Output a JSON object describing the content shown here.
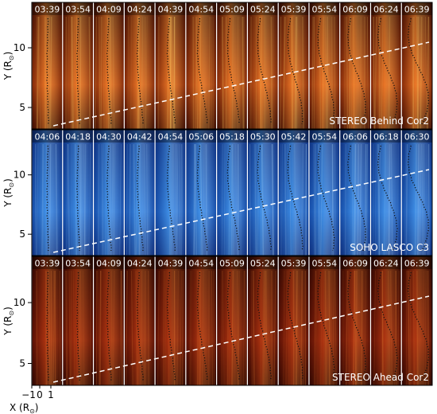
{
  "panels": [
    {
      "label": "STEREO Behind Cor2",
      "times": [
        "03:39",
        "03:54",
        "04:09",
        "04:24",
        "04:39",
        "04:54",
        "05:09",
        "05:24",
        "05:39",
        "05:54",
        "06:09",
        "06:24",
        "06:39"
      ],
      "colors": {
        "dark": "#3a0800",
        "mid": "#d04a10",
        "bright": "#ff9a3a",
        "hot": "#ffd06a"
      },
      "y_ticks": [
        5,
        10
      ]
    },
    {
      "label": "SOHO LASCO C3",
      "times": [
        "04:06",
        "04:18",
        "04:30",
        "04:42",
        "04:54",
        "05:06",
        "05:18",
        "05:30",
        "05:42",
        "05:54",
        "06:06",
        "06:18",
        "06:30"
      ],
      "colors": {
        "dark": "#0a2a7a",
        "mid": "#1f6fd8",
        "bright": "#5aa8f0",
        "hot": "#a8d4fa"
      },
      "y_ticks": [
        5,
        10
      ]
    },
    {
      "label": "STEREO Ahead Cor2",
      "times": [
        "03:39",
        "03:54",
        "04:09",
        "04:24",
        "04:39",
        "04:54",
        "05:09",
        "05:24",
        "05:39",
        "05:54",
        "06:09",
        "06:24",
        "06:39"
      ],
      "colors": {
        "dark": "#2a0400",
        "mid": "#8a1a08",
        "bright": "#c84818",
        "hot": "#f08a3a"
      },
      "y_ticks": [
        5,
        10
      ]
    }
  ],
  "axes": {
    "y_label": "Y (R",
    "y_label_sub": "⊙",
    "y_label_close": ")",
    "x_label": "X (R",
    "x_label_sub": "⊙",
    "x_label_close": ")",
    "x_ticks": [
      "−1",
      "0",
      "1"
    ]
  }
}
